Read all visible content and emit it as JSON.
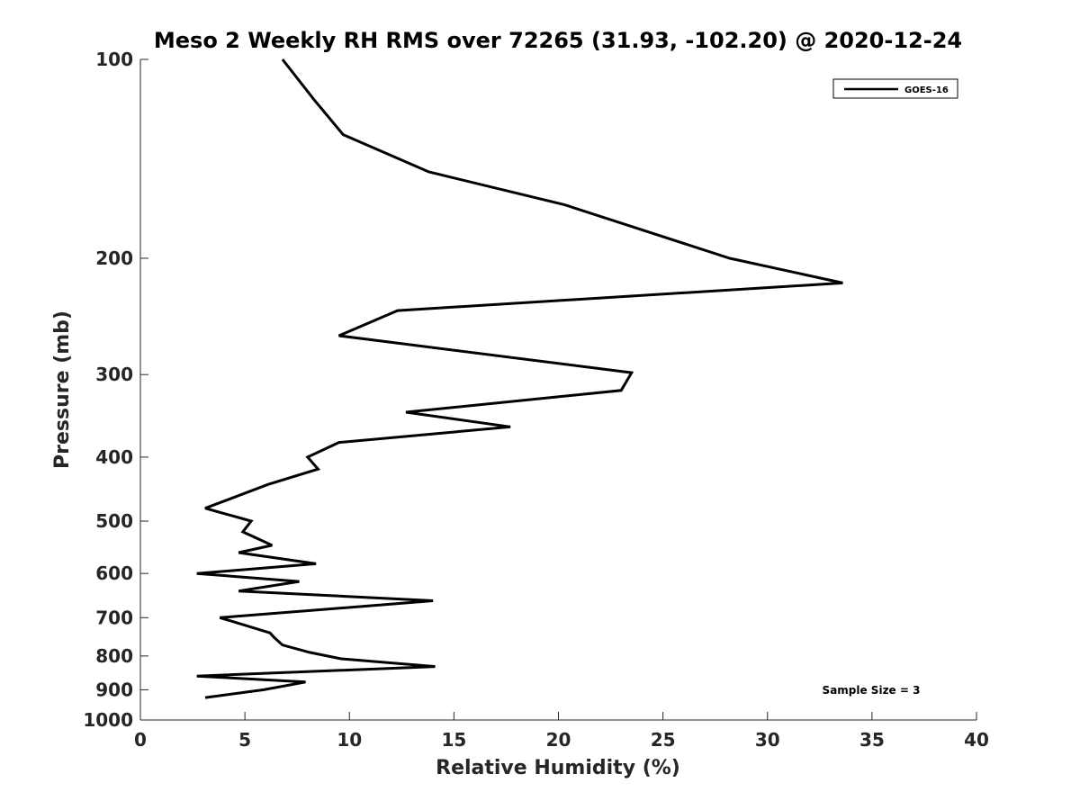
{
  "chart_data": {
    "type": "line",
    "title": "Meso 2 Weekly RH RMS over 72265 (31.93, -102.20) @ 2020-12-24",
    "xlabel": "Relative Humidity (%)",
    "ylabel": "Pressure (mb)",
    "xlim": [
      0,
      40
    ],
    "ylim": [
      100,
      1000
    ],
    "yscale": "log",
    "y_reversed": true,
    "grid": false,
    "legend_position": "top-right",
    "xticks": [
      "0",
      "5",
      "10",
      "15",
      "20",
      "25",
      "30",
      "35",
      "40"
    ],
    "yticks": [
      "100",
      "200",
      "300",
      "400",
      "500",
      "600",
      "700",
      "800",
      "900",
      "1000"
    ],
    "annotation": "Sample Size = 3",
    "series": [
      {
        "name": "GOES-16",
        "color": "#000000",
        "x": [
          6.8,
          8.3,
          9.7,
          13.8,
          20.3,
          28.2,
          33.6,
          12.3,
          9.5,
          23.5,
          23.0,
          12.7,
          17.7,
          9.5,
          8.0,
          8.5,
          6.1,
          3.1,
          5.3,
          4.9,
          6.3,
          4.7,
          8.4,
          2.7,
          7.6,
          4.7,
          14.0,
          3.8,
          6.2,
          6.4,
          6.8,
          8.1,
          9.6,
          14.1,
          2.7,
          7.9,
          5.9,
          3.1
        ],
        "y": [
          100,
          115,
          130,
          148,
          166,
          200,
          218,
          240,
          262,
          298,
          317,
          342,
          360,
          380,
          400,
          417,
          440,
          478,
          500,
          519,
          544,
          558,
          580,
          600,
          617,
          638,
          660,
          700,
          738,
          750,
          770,
          790,
          808,
          830,
          858,
          876,
          900,
          925
        ]
      }
    ]
  }
}
